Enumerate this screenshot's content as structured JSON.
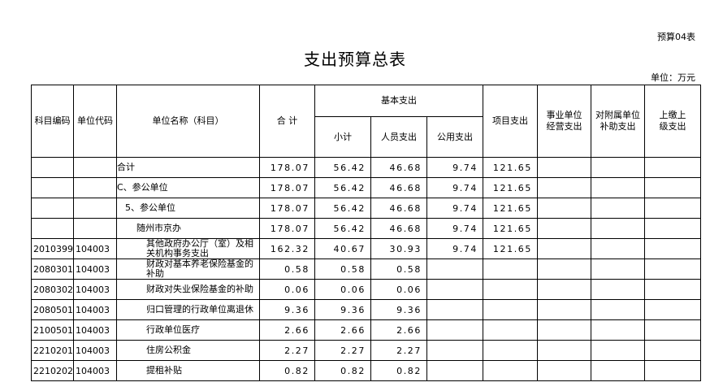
{
  "header": {
    "form_no": "预算04表",
    "title": "支出预算总表",
    "unit": "单位：万元"
  },
  "table": {
    "columns": {
      "code": "科目编码",
      "unit_code": "单位代码",
      "name": "单位名称（科目）",
      "total": "合 计",
      "basic": "基本支出",
      "subtotal": "小计",
      "personnel": "人员支出",
      "public": "公用支出",
      "project": "项目支出",
      "business": "事业单位经营支出",
      "subsidiary": "对附属单位补助支出",
      "remit": "上缴上级支出"
    },
    "rows": [
      {
        "name": "合计",
        "total": "178.07",
        "subtotal": "56.42",
        "personnel": "46.68",
        "public": "9.74",
        "project": "121.65"
      },
      {
        "name": "C、参公单位",
        "total": "178.07",
        "subtotal": "56.42",
        "personnel": "46.68",
        "public": "9.74",
        "project": "121.65"
      },
      {
        "name": "5、参公单位",
        "total": "178.07",
        "subtotal": "56.42",
        "personnel": "46.68",
        "public": "9.74",
        "project": "121.65"
      },
      {
        "name": "随州市京办",
        "total": "178.07",
        "subtotal": "56.42",
        "personnel": "46.68",
        "public": "9.74",
        "project": "121.65"
      },
      {
        "code": "2010399",
        "unit_code": "104003",
        "name": "其他政府办公厅（室）及相关机构事务支出",
        "total": "162.32",
        "subtotal": "40.67",
        "personnel": "30.93",
        "public": "9.74",
        "project": "121.65"
      },
      {
        "code": "2080301",
        "unit_code": "104003",
        "name": "财政对基本养老保险基金的补助",
        "total": "0.58",
        "subtotal": "0.58",
        "personnel": "0.58"
      },
      {
        "code": "2080302",
        "unit_code": "104003",
        "name": "财政对失业保险基金的补助",
        "total": "0.06",
        "subtotal": "0.06",
        "personnel": "0.06"
      },
      {
        "code": "2080501",
        "unit_code": "104003",
        "name": "归口管理的行政单位离退休",
        "total": "9.36",
        "subtotal": "9.36",
        "personnel": "9.36"
      },
      {
        "code": "2100501",
        "unit_code": "104003",
        "name": "行政单位医疗",
        "total": "2.66",
        "subtotal": "2.66",
        "personnel": "2.66"
      },
      {
        "code": "2210201",
        "unit_code": "104003",
        "name": "住房公积金",
        "total": "2.27",
        "subtotal": "2.27",
        "personnel": "2.27"
      },
      {
        "code": "2210202",
        "unit_code": "104003",
        "name": "提租补贴",
        "total": "0.82",
        "subtotal": "0.82",
        "personnel": "0.82"
      }
    ]
  }
}
